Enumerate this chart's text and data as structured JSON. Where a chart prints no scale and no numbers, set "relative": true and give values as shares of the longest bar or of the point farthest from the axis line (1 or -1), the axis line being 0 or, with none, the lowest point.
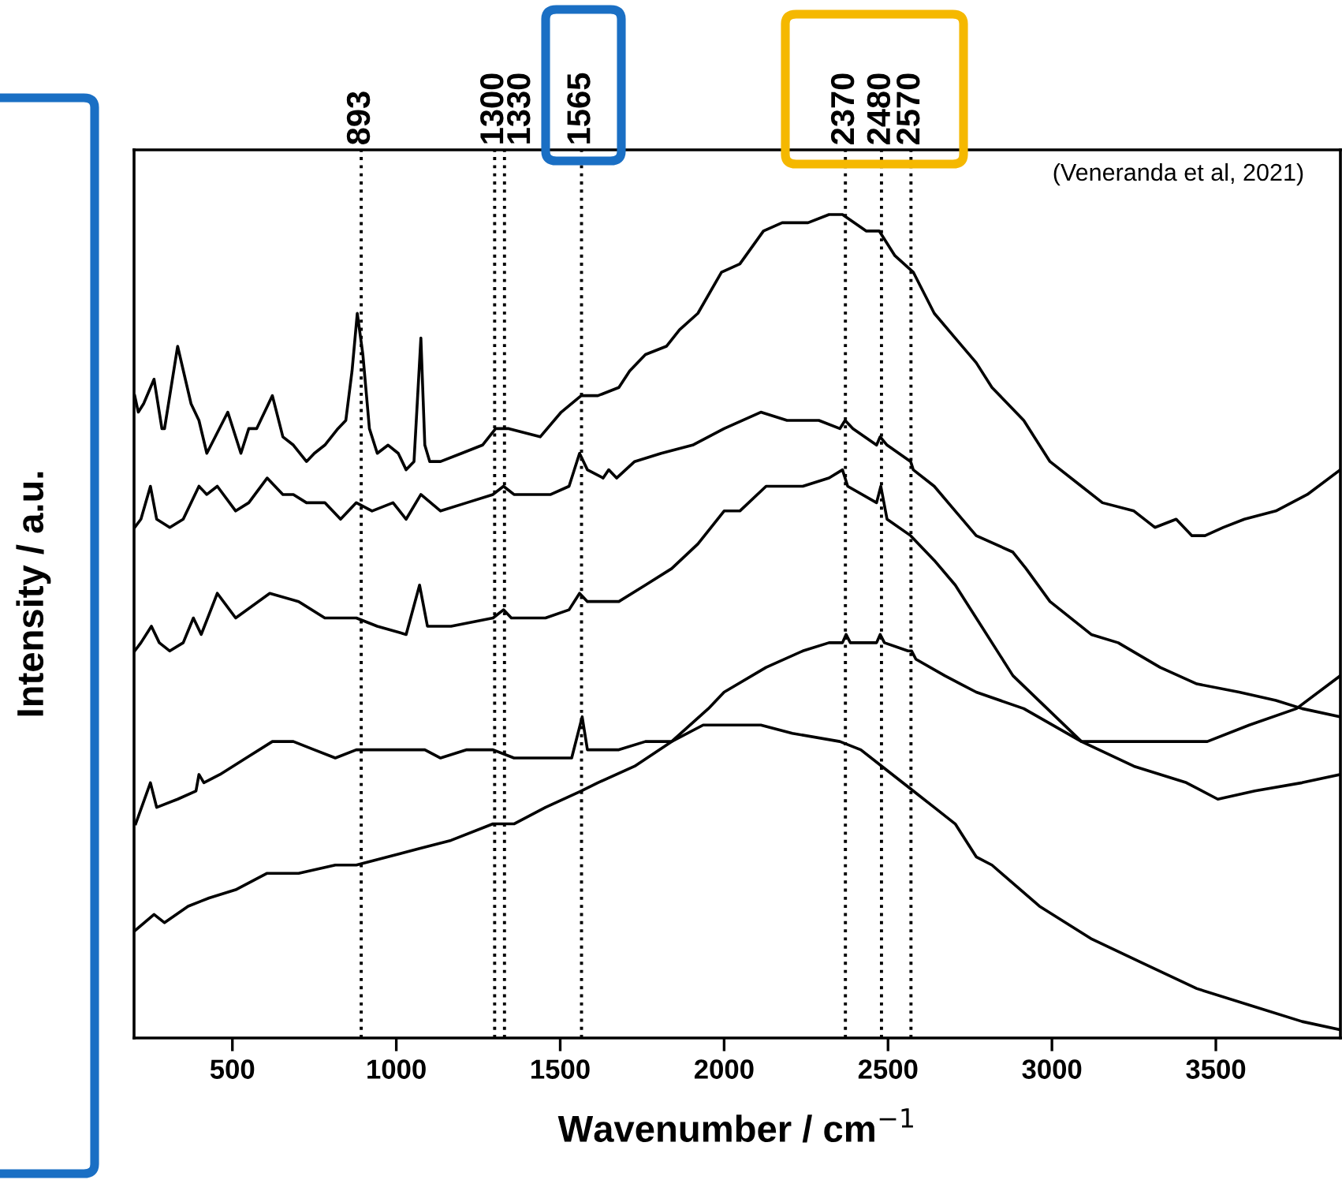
{
  "chart_data": {
    "type": "line",
    "relative": true,
    "xlabel": "Wavenumber / cm$^{−1}$",
    "ylabel": "Intensity / a.u.",
    "xlim": [
      200,
      3880
    ],
    "xticks": [
      500,
      1000,
      1500,
      2000,
      2500,
      3000,
      3500
    ],
    "tick_labels": "x",
    "grid": false,
    "legend": false,
    "marker": "none",
    "line_style": "solid",
    "annotations": [
      "(Veneranda et al, 2021)"
    ],
    "ref_lines": [
      {
        "axis": "x",
        "value": 893,
        "label": "893",
        "line_style": "dotted",
        "color": "#000000"
      },
      {
        "axis": "x",
        "value": 1300,
        "label": "1300",
        "line_style": "dotted",
        "color": "#000000"
      },
      {
        "axis": "x",
        "value": 1330,
        "label": "1330",
        "line_style": "dotted",
        "color": "#000000"
      },
      {
        "axis": "x",
        "value": 1565,
        "label": "1565",
        "line_style": "dotted",
        "color": "#000000"
      },
      {
        "axis": "x",
        "value": 2370,
        "label": "2370",
        "line_style": "dotted",
        "color": "#000000"
      },
      {
        "axis": "x",
        "value": 2480,
        "label": "2480",
        "line_style": "dotted",
        "color": "#000000"
      },
      {
        "axis": "x",
        "value": 2570,
        "label": "2570",
        "line_style": "dotted",
        "color": "#000000"
      }
    ],
    "series": [
      {
        "color": "#000000",
        "x": [
          202,
          213,
          229,
          261,
          285,
          293,
          333,
          374,
          398,
          422,
          486,
          526,
          550,
          574,
          622,
          654,
          686,
          726,
          750,
          782,
          822,
          846,
          865,
          881,
          898,
          918,
          942,
          975,
          1006,
          1030,
          1054,
          1075,
          1087,
          1102,
          1135,
          1199,
          1263,
          1303,
          1343,
          1439,
          1503,
          1564,
          1615,
          1679,
          1712,
          1760,
          1824,
          1864,
          1920,
          1992,
          2048,
          2120,
          2177,
          2256,
          2320,
          2361,
          2433,
          2473,
          2521,
          2577,
          2641,
          2705,
          2769,
          2817,
          2914,
          2994,
          3090,
          3154,
          3250,
          3314,
          3379,
          3427,
          3467,
          3523,
          3587,
          3683,
          3779,
          3880
        ],
        "values": [
          0.78,
          0.76,
          0.77,
          0.8,
          0.74,
          0.74,
          0.84,
          0.77,
          0.75,
          0.71,
          0.76,
          0.71,
          0.74,
          0.74,
          0.78,
          0.73,
          0.72,
          0.7,
          0.71,
          0.72,
          0.74,
          0.75,
          0.81,
          0.88,
          0.83,
          0.74,
          0.71,
          0.72,
          0.71,
          0.69,
          0.7,
          0.85,
          0.72,
          0.7,
          0.7,
          0.71,
          0.72,
          0.74,
          0.74,
          0.73,
          0.76,
          0.78,
          0.78,
          0.79,
          0.81,
          0.83,
          0.84,
          0.86,
          0.88,
          0.93,
          0.94,
          0.98,
          0.99,
          0.99,
          1.0,
          1.0,
          0.98,
          0.98,
          0.95,
          0.93,
          0.88,
          0.85,
          0.82,
          0.79,
          0.75,
          0.7,
          0.67,
          0.65,
          0.64,
          0.62,
          0.63,
          0.61,
          0.61,
          0.62,
          0.63,
          0.64,
          0.66,
          0.69
        ]
      },
      {
        "color": "#000000",
        "x": [
          202,
          221,
          250,
          269,
          309,
          350,
          398,
          422,
          454,
          510,
          550,
          606,
          630,
          654,
          686,
          726,
          782,
          830,
          878,
          926,
          990,
          1030,
          1075,
          1135,
          1215,
          1295,
          1327,
          1359,
          1471,
          1527,
          1559,
          1583,
          1631,
          1648,
          1672,
          1727,
          1808,
          1904,
          2000,
          2112,
          2192,
          2289,
          2353,
          2369,
          2393,
          2465,
          2476,
          2497,
          2569,
          2577,
          2641,
          2705,
          2769,
          2881,
          2921,
          2994,
          3120,
          3202,
          3330,
          3442,
          3571,
          3683,
          3763,
          3880
        ],
        "values": [
          0.62,
          0.63,
          0.67,
          0.63,
          0.62,
          0.63,
          0.67,
          0.66,
          0.67,
          0.64,
          0.65,
          0.68,
          0.67,
          0.66,
          0.66,
          0.65,
          0.65,
          0.63,
          0.65,
          0.64,
          0.65,
          0.63,
          0.66,
          0.64,
          0.65,
          0.66,
          0.67,
          0.66,
          0.66,
          0.67,
          0.71,
          0.69,
          0.68,
          0.69,
          0.68,
          0.7,
          0.71,
          0.72,
          0.74,
          0.76,
          0.75,
          0.75,
          0.74,
          0.75,
          0.74,
          0.72,
          0.73,
          0.72,
          0.7,
          0.69,
          0.67,
          0.64,
          0.61,
          0.59,
          0.57,
          0.53,
          0.49,
          0.48,
          0.45,
          0.43,
          0.42,
          0.41,
          0.4,
          0.39
        ]
      },
      {
        "color": "#000000",
        "x": [
          202,
          221,
          253,
          277,
          309,
          350,
          381,
          405,
          454,
          510,
          614,
          702,
          782,
          878,
          942,
          1030,
          1071,
          1095,
          1167,
          1295,
          1327,
          1351,
          1455,
          1527,
          1559,
          1583,
          1679,
          1760,
          1840,
          1920,
          2000,
          2048,
          2128,
          2240,
          2320,
          2361,
          2377,
          2465,
          2478,
          2497,
          2569,
          2641,
          2705,
          2769,
          2881,
          3090,
          3250,
          3410,
          3506,
          3619,
          3763,
          3880
        ],
        "values": [
          0.47,
          0.48,
          0.5,
          0.48,
          0.47,
          0.48,
          0.51,
          0.49,
          0.54,
          0.51,
          0.54,
          0.53,
          0.51,
          0.51,
          0.5,
          0.49,
          0.55,
          0.5,
          0.5,
          0.51,
          0.52,
          0.51,
          0.51,
          0.52,
          0.54,
          0.53,
          0.53,
          0.55,
          0.57,
          0.6,
          0.64,
          0.64,
          0.67,
          0.67,
          0.68,
          0.69,
          0.67,
          0.65,
          0.67,
          0.63,
          0.61,
          0.58,
          0.55,
          0.51,
          0.44,
          0.36,
          0.33,
          0.31,
          0.29,
          0.3,
          0.31,
          0.32
        ]
      },
      {
        "color": "#000000",
        "x": [
          205,
          250,
          269,
          333,
          389,
          398,
          413,
          462,
          542,
          622,
          686,
          750,
          814,
          878,
          926,
          1006,
          1087,
          1135,
          1215,
          1295,
          1359,
          1455,
          1535,
          1567,
          1583,
          1679,
          1760,
          1840,
          1952,
          2000,
          2128,
          2240,
          2320,
          2361,
          2372,
          2385,
          2465,
          2476,
          2489,
          2561,
          2572,
          2585,
          2673,
          2721,
          2769,
          2914,
          3090,
          3250,
          3362,
          3474,
          3602,
          3746,
          3880
        ],
        "values": [
          0.26,
          0.31,
          0.28,
          0.29,
          0.3,
          0.32,
          0.31,
          0.32,
          0.34,
          0.36,
          0.36,
          0.35,
          0.34,
          0.35,
          0.35,
          0.35,
          0.35,
          0.34,
          0.35,
          0.35,
          0.34,
          0.34,
          0.34,
          0.39,
          0.35,
          0.35,
          0.36,
          0.36,
          0.4,
          0.42,
          0.45,
          0.47,
          0.48,
          0.48,
          0.49,
          0.48,
          0.48,
          0.49,
          0.48,
          0.47,
          0.47,
          0.46,
          0.44,
          0.43,
          0.42,
          0.4,
          0.36,
          0.36,
          0.36,
          0.36,
          0.38,
          0.4,
          0.44
        ]
      },
      {
        "color": "#000000",
        "x": [
          202,
          261,
          293,
          365,
          429,
          510,
          606,
          702,
          814,
          878,
          975,
          1071,
          1167,
          1295,
          1359,
          1455,
          1564,
          1615,
          1727,
          1840,
          1936,
          2000,
          2112,
          2208,
          2353,
          2417,
          2481,
          2577,
          2641,
          2705,
          2721,
          2769,
          2817,
          2962,
          3122,
          3282,
          3442,
          3602,
          3763,
          3880
        ],
        "values": [
          0.13,
          0.15,
          0.14,
          0.16,
          0.17,
          0.18,
          0.2,
          0.2,
          0.21,
          0.21,
          0.22,
          0.23,
          0.24,
          0.26,
          0.26,
          0.28,
          0.3,
          0.31,
          0.33,
          0.36,
          0.38,
          0.38,
          0.38,
          0.37,
          0.36,
          0.35,
          0.33,
          0.3,
          0.28,
          0.26,
          0.25,
          0.22,
          0.21,
          0.16,
          0.12,
          0.09,
          0.06,
          0.04,
          0.02,
          0.01
        ]
      }
    ]
  }
}
